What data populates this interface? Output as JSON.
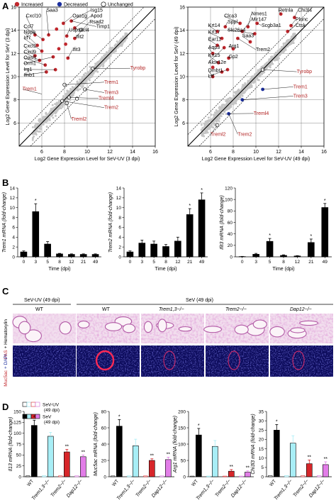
{
  "panels": {
    "a": "A",
    "b": "B",
    "c": "C",
    "d": "D"
  },
  "legend_a": {
    "increased": "Increased",
    "decreased": "Decreased",
    "unchanged": "Unchanged"
  },
  "colors": {
    "increased": "#c1272d",
    "decreased": "#1c2f9e",
    "black": "#000000",
    "cyan": "#a8eef6",
    "red": "#d7262a",
    "magenta": "#e27de8",
    "pas_bg": "#f2dfee",
    "if_bg": "#0b0a5a"
  },
  "chart_data": [
    {
      "type": "scatter",
      "xlabel": "Log2 Gene Expression Level for SeV-UV (3 dpi)",
      "ylabel": "Log2 Gene Expression Level for SeV (3 dpi)",
      "xlim": [
        4,
        16
      ],
      "ylim": [
        4,
        16
      ],
      "xticks": [
        "6",
        "8",
        "10",
        "12",
        "14",
        "16"
      ],
      "yticks": [
        "6",
        "8",
        "10",
        "12",
        "14",
        "16"
      ],
      "labels_up": [
        "Saa3",
        "Cxcl10",
        "Oas1g",
        "Isg15",
        "Apod",
        "Rsad2",
        "Ccl7",
        "Nppa",
        "Irf7",
        "Cxcl1",
        "Cxcl9",
        "Oasl1",
        "Orm1",
        "Irg1",
        "Ifnb1",
        "Usp18",
        "Ifit2",
        "Ccl4",
        "Timp1",
        "Ifit3"
      ],
      "labels_trem": [
        "Tyrobp",
        "Trem1",
        "Trem3",
        "Treml4",
        "Trem2",
        "Treml2",
        "Trem1"
      ],
      "increased": [
        [
          5.4,
          13.6
        ],
        [
          6.1,
          13.2
        ],
        [
          6.6,
          13.6
        ],
        [
          7.3,
          14.1
        ],
        [
          7.9,
          14.6
        ],
        [
          8.6,
          14.8
        ],
        [
          8.9,
          14.2
        ],
        [
          8.2,
          13.5
        ],
        [
          8.9,
          13.3
        ],
        [
          5.6,
          12.7
        ],
        [
          6.0,
          12.2
        ],
        [
          5.4,
          11.8
        ],
        [
          5.8,
          11.4
        ],
        [
          6.3,
          11.0
        ],
        [
          7.0,
          11.7
        ],
        [
          7.5,
          12.4
        ],
        [
          8.1,
          12.8
        ],
        [
          8.3,
          11.6
        ],
        [
          7.2,
          10.6
        ],
        [
          6.4,
          10.4
        ]
      ],
      "unchanged_marked": [
        [
          10.5,
          10.7
        ],
        [
          8.0,
          9.3
        ],
        [
          9.8,
          8.9
        ],
        [
          8.4,
          8.2
        ],
        [
          7.8,
          7.9
        ],
        [
          9.1,
          8.1
        ],
        [
          8.2,
          7.7
        ]
      ]
    },
    {
      "type": "scatter",
      "xlabel": "Log2 Gene Expression Level for SeV-UV (49 dpi)",
      "ylabel": "Log2 Gene Expression Level for SeV (49 dpi)",
      "xlim": [
        4,
        16
      ],
      "ylim": [
        4,
        16
      ],
      "xticks": [
        "6",
        "8",
        "10",
        "12",
        "14",
        "16"
      ],
      "yticks": [
        "6",
        "8",
        "10",
        "12",
        "14",
        "16"
      ],
      "labels_up": [
        "Retnla",
        "Chi3l4",
        "Clca3",
        "Nmes1",
        "Mir147",
        "Scgb3a1",
        "Plunc",
        "Ctsk",
        "Sppl",
        "Krt14",
        "Slc26a4",
        "Krt17",
        "Ear11",
        "Saa3",
        "Arg1",
        "Aqp3",
        "Trem2",
        "Krt15",
        "Gp2",
        "Alox12e",
        "Dmbt1",
        "Ltf"
      ],
      "labels_trem": [
        "Tyrobp",
        "Trem1",
        "Trem3",
        "Treml4",
        "Treml2",
        "Trem2"
      ],
      "increased": [
        [
          8.6,
          14.6
        ],
        [
          9.3,
          14.3
        ],
        [
          10.1,
          14.6
        ],
        [
          7.3,
          14.3
        ],
        [
          6.6,
          13.9
        ],
        [
          8.8,
          13.9
        ],
        [
          9.9,
          13.7
        ],
        [
          7.0,
          13.3
        ],
        [
          8.4,
          13.3
        ],
        [
          9.5,
          13.0
        ],
        [
          6.6,
          12.7
        ],
        [
          7.2,
          12.5
        ],
        [
          8.0,
          12.4
        ],
        [
          6.2,
          12.0
        ],
        [
          7.6,
          11.6
        ],
        [
          6.7,
          11.2
        ],
        [
          7.5,
          10.6
        ],
        [
          6.2,
          10.8
        ],
        [
          7.0,
          10.4
        ],
        [
          6.2,
          10.0
        ],
        [
          12.2,
          15.4
        ],
        [
          13.4,
          15.1
        ],
        [
          13.1,
          14.4
        ],
        [
          12.8,
          13.9
        ]
      ],
      "decreased": [
        [
          10.6,
          8.9
        ],
        [
          8.8,
          8.0
        ],
        [
          7.6,
          6.8
        ]
      ],
      "unchanged_marked": [
        [
          10.6,
          10.6
        ],
        [
          6.6,
          5.8
        ]
      ]
    },
    {
      "type": "bar",
      "ylabel": "Trem1 mRNA (fold-change)",
      "xlabel": "Time (dpi)",
      "categories": [
        "0",
        "3",
        "5",
        "8",
        "12",
        "21",
        "49"
      ],
      "values": [
        1.0,
        9.2,
        2.6,
        0.6,
        0.5,
        0.5,
        0.5
      ],
      "errors": [
        0.2,
        1.6,
        0.5,
        0.1,
        0.1,
        0.1,
        0.1
      ],
      "stars": [
        "",
        "*",
        "",
        "",
        "",
        "",
        ""
      ],
      "ylim": [
        0,
        14
      ],
      "yticks": [
        "0",
        "2",
        "4",
        "6",
        "8",
        "10",
        "12",
        "14"
      ]
    },
    {
      "type": "bar",
      "ylabel": "Trem2 mRNA (fold-change)",
      "xlabel": "Time (dpi)",
      "categories": [
        "0",
        "3",
        "5",
        "8",
        "12",
        "21",
        "49"
      ],
      "values": [
        1.0,
        2.8,
        2.6,
        2.1,
        3.2,
        8.6,
        11.6
      ],
      "errors": [
        0.2,
        0.6,
        0.6,
        0.4,
        0.8,
        1.2,
        1.4
      ],
      "stars": [
        "",
        "",
        "",
        "",
        "",
        "*",
        "*"
      ],
      "ylim": [
        0,
        14
      ],
      "yticks": [
        "0",
        "2",
        "4",
        "6",
        "8",
        "10",
        "12",
        "14"
      ]
    },
    {
      "type": "bar",
      "ylabel": "Ifit3 mRNA (fold-change)",
      "xlabel": "Time (dpi)",
      "categories": [
        "0",
        "3",
        "5",
        "8",
        "12",
        "21",
        "49"
      ],
      "values": [
        0.5,
        4.5,
        27,
        2.5,
        1.5,
        25,
        86
      ],
      "errors": [
        0.3,
        1.5,
        5,
        1.0,
        0.5,
        6,
        7
      ],
      "stars": [
        "",
        "",
        "*",
        "",
        "",
        "*",
        "*"
      ],
      "ylim": [
        0,
        120
      ],
      "yticks": [
        "0",
        "20",
        "40",
        "60",
        "80",
        "100",
        "120"
      ]
    },
    {
      "type": "bar",
      "ylabel": "Il13 mRNA (fold-change)",
      "categories": [
        "WT",
        "Trem1,3−/−",
        "Trem2−/−",
        "Dap12−/−"
      ],
      "series": [
        {
          "name": "SeV-UV (49 dpi)",
          "values": [
            2,
            2,
            2,
            2
          ]
        },
        {
          "name": "SeV (49 dpi)",
          "values": [
            118,
            93,
            57,
            46
          ]
        }
      ],
      "errors": [
        12,
        9,
        6,
        4
      ],
      "stars": [
        "*",
        "",
        "**",
        "**"
      ],
      "ylim": [
        0,
        150
      ],
      "yticks": [
        "0",
        "25",
        "50",
        "75",
        "100",
        "125",
        "150"
      ]
    },
    {
      "type": "bar",
      "ylabel": "Muc5ac mRNA (fold-change)",
      "categories": [
        "WT",
        "Trem1,3−/−",
        "Trem2−/−",
        "Dap12−/−"
      ],
      "series": [
        {
          "name": "SeV-UV (49 dpi)",
          "values": [
            1,
            1,
            1,
            1
          ]
        },
        {
          "name": "SeV (49 dpi)",
          "values": [
            62,
            38,
            20,
            21
          ]
        }
      ],
      "errors": [
        8,
        8,
        2,
        3
      ],
      "stars": [
        "*",
        "",
        "**",
        "**"
      ],
      "ylim": [
        0,
        80
      ],
      "yticks": [
        "0",
        "20",
        "40",
        "60",
        "80"
      ]
    },
    {
      "type": "bar",
      "ylabel": "Arg1 mRNA (fold-change)",
      "categories": [
        "WT",
        "Trem1,3−/−",
        "Trem2−/−",
        "Dap12−/−"
      ],
      "series": [
        {
          "name": "SeV-UV (49 dpi)",
          "values": [
            2,
            2,
            2,
            2
          ]
        },
        {
          "name": "SeV (49 dpi)",
          "values": [
            128,
            93,
            17,
            14
          ]
        }
      ],
      "errors": [
        20,
        18,
        5,
        4
      ],
      "stars": [
        "*",
        "",
        "**",
        "**"
      ],
      "ylim": [
        0,
        200
      ],
      "yticks": [
        "0",
        "50",
        "100",
        "150",
        "200"
      ]
    },
    {
      "type": "bar",
      "ylabel": "Chi3l3 mRNA (fold-change)",
      "categories": [
        "WT",
        "Trem1,3−/−",
        "Trem2−/−",
        "Dap12−/−"
      ],
      "series": [
        {
          "name": "SeV-UV (49 dpi)",
          "values": [
            0.6,
            0.6,
            0.6,
            0.6
          ]
        },
        {
          "name": "SeV (49 dpi)",
          "values": [
            25,
            18,
            7,
            6.5
          ]
        }
      ],
      "errors": [
        3,
        4,
        2,
        1.5
      ],
      "stars": [
        "*",
        "",
        "**",
        "**"
      ],
      "ylim": [
        0,
        35
      ],
      "yticks": [
        "0",
        "5",
        "10",
        "15",
        "20",
        "25",
        "30",
        "35"
      ]
    }
  ],
  "panel_c": {
    "header_left": "SeV-UV (49 dpi)",
    "header_right": "SeV (49 dpi)",
    "columns": [
      "WT",
      "WT",
      "Trem1,3−/−",
      "Trem2−/−",
      "Dap12−/−"
    ],
    "row1_label_a": "PAS",
    "row1_label_b": "+ Hematoxylin",
    "row2_label_a": "Muc5ac",
    "row2_label_b": "+ DAPI"
  },
  "legend_d": {
    "uv": "SeV-UV",
    "uv_dpi": "(49 dpi)",
    "sev": "SeV",
    "sev_dpi": "(49 dpi)"
  }
}
